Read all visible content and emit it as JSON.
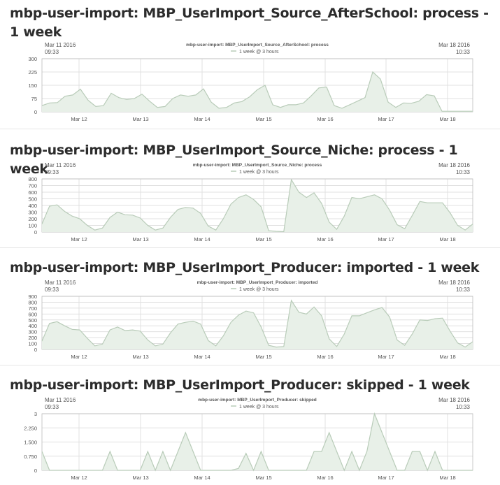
{
  "colors": {
    "background": "#ffffff",
    "grid": "#e0e0e0",
    "axis": "#bbbbbb",
    "area_fill": "#e8f0e8",
    "line": "#b9ccb9",
    "label": "#555555"
  },
  "panels": [
    {
      "title": "mbp-user-import: MBP_UserImport_Source_AfterSchool: process - 1 week",
      "chart_data": {
        "type": "area",
        "title": "mbp-user-import:  MBP_UserImport_Source_AfterSchool: process",
        "legend": "1 week @ 3 hours",
        "legend_position": "top-center",
        "start_date": "Mar 11 2016",
        "start_time": "09:33",
        "end_date": "Mar 18 2016",
        "end_time": "10:33",
        "xlabel": "",
        "ylabel": "",
        "x_ticks": [
          "Mar 12",
          "Mar 13",
          "Mar 14",
          "Mar 15",
          "Mar 16",
          "Mar 17",
          "Mar 18"
        ],
        "y_ticks": [
          "300",
          "225",
          "150",
          "75",
          "0"
        ],
        "ylim": [
          0,
          300
        ],
        "grid": true,
        "series": [
          {
            "values": [
              35,
              50,
              52,
              88,
              95,
              128,
              65,
              30,
              35,
              105,
              80,
              70,
              75,
              100,
              60,
              25,
              30,
              75,
              95,
              88,
              95,
              130,
              55,
              20,
              25,
              50,
              58,
              85,
              125,
              150,
              40,
              25,
              40,
              40,
              50,
              90,
              135,
              140,
              35,
              20,
              40,
              60,
              80,
              225,
              185,
              55,
              25,
              50,
              48,
              60,
              97,
              90,
              3,
              3,
              3,
              3,
              3
            ]
          }
        ]
      }
    },
    {
      "title": "mbp-user-import: MBP_UserImport_Source_Niche: process - 1 week",
      "chart_data": {
        "type": "area",
        "title": "mbp-user-import:  MBP_UserImport_Source_Niche: process",
        "legend": "1 week @ 3 hours",
        "legend_position": "top-center",
        "start_date": "Mar 11 2016",
        "start_time": "09:33",
        "end_date": "Mar 18 2016",
        "end_time": "10:33",
        "xlabel": "",
        "ylabel": "",
        "x_ticks": [
          "Mar 12",
          "Mar 13",
          "Mar 14",
          "Mar 15",
          "Mar 16",
          "Mar 17",
          "Mar 18"
        ],
        "y_ticks": [
          "800",
          "700",
          "600",
          "500",
          "400",
          "300",
          "200",
          "100",
          "0"
        ],
        "ylim": [
          0,
          800
        ],
        "grid": true,
        "series": [
          {
            "values": [
              120,
              390,
              410,
              310,
              240,
              200,
              100,
              30,
              60,
              220,
              300,
              260,
              255,
              210,
              100,
              30,
              60,
              220,
              340,
              370,
              360,
              280,
              90,
              30,
              200,
              420,
              520,
              560,
              490,
              380,
              20,
              10,
              5,
              790,
              600,
              520,
              590,
              430,
              150,
              40,
              240,
              520,
              500,
              530,
              560,
              500,
              330,
              110,
              50,
              250,
              460,
              440,
              440,
              440,
              290,
              100,
              30,
              120
            ]
          }
        ]
      }
    },
    {
      "title": "mbp-user-import: MBP_UserImport_Producer: imported - 1 week",
      "chart_data": {
        "type": "area",
        "title": "mbp-user-import:  MBP_UserImport_Producer: imported",
        "legend": "1 week @ 3 hours",
        "legend_position": "top-center",
        "start_date": "Mar 11 2016",
        "start_time": "09:33",
        "end_date": "Mar 18 2016",
        "end_time": "10:33",
        "xlabel": "",
        "ylabel": "",
        "x_ticks": [
          "Mar 12",
          "Mar 13",
          "Mar 14",
          "Mar 15",
          "Mar 16",
          "Mar 17",
          "Mar 18"
        ],
        "y_ticks": [
          "900",
          "800",
          "700",
          "600",
          "500",
          "400",
          "300",
          "200",
          "100",
          "0"
        ],
        "ylim": [
          0,
          900
        ],
        "grid": true,
        "series": [
          {
            "values": [
              140,
              440,
              470,
              400,
              340,
              330,
              190,
              60,
              90,
              330,
              380,
              320,
              330,
              310,
              160,
              60,
              90,
              280,
              430,
              460,
              480,
              430,
              150,
              60,
              230,
              460,
              580,
              650,
              620,
              380,
              70,
              40,
              50,
              830,
              630,
              600,
              720,
              570,
              180,
              50,
              260,
              570,
              570,
              620,
              670,
              710,
              550,
              160,
              70,
              260,
              500,
              490,
              520,
              530,
              310,
              110,
              40,
              130
            ]
          }
        ]
      }
    },
    {
      "title": "mbp-user-import: MBP_UserImport_Producer: skipped - 1 week",
      "chart_data": {
        "type": "area",
        "title": "mbp-user-import:  MBP_UserImport_Producer: skipped",
        "legend": "1 week @ 3 hours",
        "legend_position": "top-center",
        "start_date": "Mar 11 2016",
        "start_time": "09:33",
        "end_date": "Mar 18 2016",
        "end_time": "10:33",
        "xlabel": "",
        "ylabel": "",
        "x_ticks": [
          "Mar 12",
          "Mar 13",
          "Mar 14",
          "Mar 15",
          "Mar 16",
          "Mar 17",
          "Mar 18"
        ],
        "y_ticks": [
          "3",
          "2.250",
          "1.500",
          "0.750",
          "0"
        ],
        "ylim": [
          0,
          3
        ],
        "grid": true,
        "series": [
          {
            "values": [
              1,
              0,
              0,
              0,
              0,
              0,
              0,
              0,
              0,
              1,
              0,
              0,
              0,
              0,
              1,
              0,
              1,
              0,
              1,
              2,
              1,
              0,
              0,
              0,
              0,
              0,
              0.1,
              0.9,
              0,
              1,
              0,
              0,
              0,
              0,
              0,
              0,
              1,
              1,
              2,
              1,
              0,
              1,
              0,
              1,
              3,
              2,
              1,
              0,
              0,
              1,
              1,
              0,
              1,
              0,
              0,
              0,
              0,
              0
            ]
          }
        ]
      }
    }
  ]
}
